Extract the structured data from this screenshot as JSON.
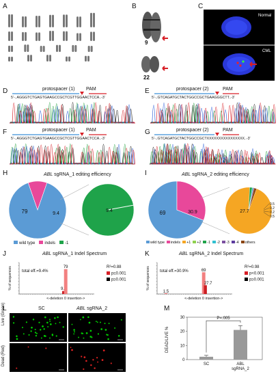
{
  "labels": {
    "A": "A",
    "B": "B",
    "C": "C",
    "D": "D",
    "E": "E",
    "F": "F",
    "G": "G",
    "H": "H",
    "I": "I",
    "J": "J",
    "K": "K",
    "L": "L",
    "M": "M"
  },
  "panel_b": {
    "chrom9": "9",
    "chrom22": "22"
  },
  "panel_c": {
    "top": "Normal",
    "bottom": "CML"
  },
  "panel_d": {
    "protospacer": "protospacer (1)",
    "pam": "PAM",
    "seq": "5'-..AGGGTCTGAGTGAAGCCGCTCGTTGGAACTCCA..-3'"
  },
  "panel_e": {
    "protospacer": "protospacer (2)",
    "pam": "PAM",
    "seq": "5'-..GTCAGATGCTACTGGCCGCTGAAGGGCTT..-3'"
  },
  "panel_f": {
    "protospacer": "protospacer (1)",
    "pam": "PAM",
    "seq": "5'-..AGGGTCTGAGTGAAGCCGCTCGTTGGAACTCCA..-3'"
  },
  "panel_g": {
    "protospacer": "protospacer (2)",
    "pam": "PAM",
    "seq": "5'-..GTCAGATGCTACTGGCCGCTXXXXXXXXXXXXXXXX..-3'"
  },
  "panel_h": {
    "title_italic": "ABL",
    "title_rest": " sgRNA_1 editing efficiency",
    "legend": [
      {
        "label": "wild type",
        "color": "#5b9bd5"
      },
      {
        "label": "indels",
        "color": "#e8489a"
      },
      {
        "label": "-1",
        "color": "#1fa34a"
      }
    ]
  },
  "panel_i": {
    "title_italic": "ABL",
    "title_rest": " sgRNA_2 editing efficiency",
    "legend": [
      {
        "label": "wild type",
        "color": "#5b9bd5"
      },
      {
        "label": "indels",
        "color": "#e8489a"
      },
      {
        "label": "+1",
        "color": "#f5a623"
      },
      {
        "label": "+2",
        "color": "#8fd14f"
      },
      {
        "label": "-1",
        "color": "#1fa34a"
      },
      {
        "label": "-2",
        "color": "#30c0d0"
      },
      {
        "label": "-3",
        "color": "#7b4fa0"
      },
      {
        "label": "-4",
        "color": "#5c3a9e"
      },
      {
        "label": "others",
        "color": "#8b4513"
      }
    ]
  },
  "panel_j": {
    "title_italic": "ABL",
    "title_rest": " sgRNA_1 Indel Spectrum",
    "total": "total eff.=9.4%",
    "r2": "R²=0.88",
    "p1": "p≤0.001",
    "p2": "p≥0.001",
    "ylabel": "% of sequences",
    "xlabel": "<-deletion  0  insertion->"
  },
  "panel_k": {
    "title_italic": "ABL",
    "title_rest": " sgRNA_2 Indel Spectrum",
    "total": "total eff.=30.9%",
    "r2": "R²=0.98",
    "p1": "p<0.001",
    "p2": "p≥0.001",
    "ylabel": "% of sequences",
    "xlabel": "<-deletion  0  insertion->"
  },
  "panel_l": {
    "col1": "SC",
    "col2_italic": "ABL",
    "col2_rest": " sgRNA_2",
    "row1": "Live (Green)",
    "row2": "Dead (Red)"
  },
  "panel_m": {
    "ylabel": "DEAD/LIVE %",
    "pval": "P=.005"
  },
  "chart_data": [
    {
      "type": "pie",
      "title": "ABL sgRNA_1 editing efficiency",
      "slices": [
        {
          "label": "wild type",
          "value": 79
        },
        {
          "label": "indels",
          "value": 9.4
        }
      ],
      "detail": [
        {
          "label": "-1",
          "value": 9.4
        }
      ],
      "value_labels": [
        "79",
        "9.4",
        "9.4"
      ]
    },
    {
      "type": "pie",
      "title": "ABL sgRNA_2 editing efficiency",
      "slices": [
        {
          "label": "wild type",
          "value": 69
        },
        {
          "label": "indels",
          "value": 30.9
        }
      ],
      "detail": [
        {
          "label": "+1",
          "value": 27.7
        },
        {
          "label": "-1",
          "value": 0.5
        },
        {
          "label": "-2",
          "value": 0.2
        },
        {
          "label": "-3",
          "value": 0.2
        },
        {
          "label": "others",
          "value": 0.5
        }
      ],
      "value_labels": [
        "69",
        "30.9",
        "27.7",
        "0.5",
        "0.2",
        "0.2",
        "0.5"
      ]
    },
    {
      "type": "bar",
      "title": "ABL sgRNA_1 Indel Spectrum",
      "x": [
        -1,
        0
      ],
      "values": [
        9.4,
        79
      ],
      "value_labels": [
        "9.4",
        "79"
      ],
      "colors": [
        "#cc1d22",
        "#f28080"
      ],
      "ylim": [
        0,
        100
      ]
    },
    {
      "type": "bar",
      "title": "ABL sgRNA_2 Indel Spectrum",
      "x": [
        -20,
        0,
        1
      ],
      "values": [
        1.5,
        69,
        27.7
      ],
      "value_labels": [
        "1.5",
        "69",
        "27.7"
      ],
      "colors": [
        "#cc1d22",
        "#f28080",
        "#cc1d22"
      ],
      "ylim": [
        0,
        100
      ]
    },
    {
      "type": "bar",
      "title": "DEAD/LIVE %",
      "categories": [
        "SC",
        "ABL sgRNA_2"
      ],
      "values": [
        2,
        21
      ],
      "errors": [
        1,
        3
      ],
      "ytick_labels": [
        "0",
        "10",
        "20",
        "30"
      ],
      "ylim": [
        0,
        30
      ]
    }
  ]
}
